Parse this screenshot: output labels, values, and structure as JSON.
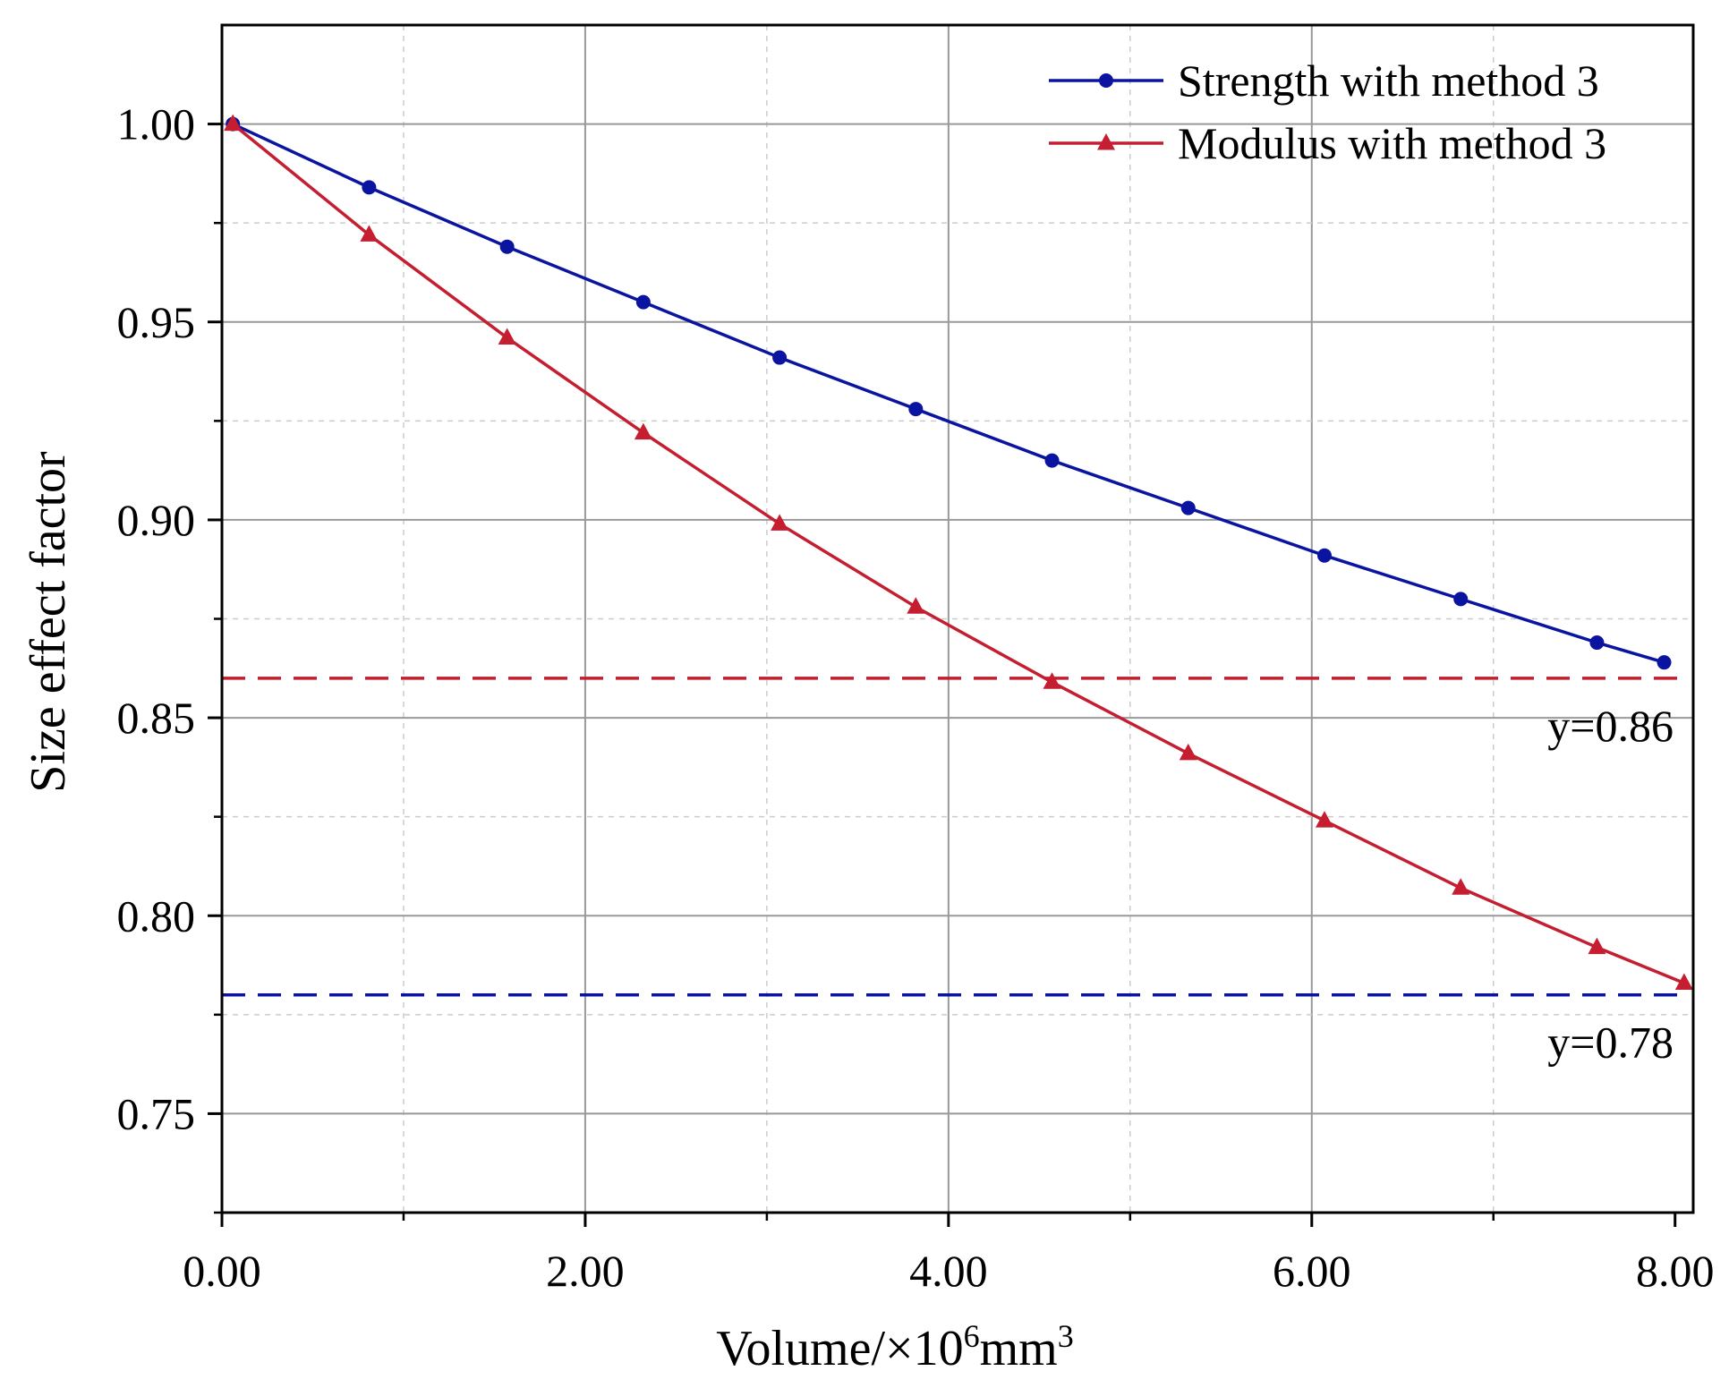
{
  "chart_data": {
    "type": "line",
    "xlabel": "Volume/×10",
    "xlabel_sup": "6",
    "xlabel_unit": "mm",
    "xlabel_unit_sup": "3",
    "ylabel": "Size effect factor",
    "xlim": [
      0,
      8.1
    ],
    "ylim": [
      0.725,
      1.025
    ],
    "x_ticks": [
      "0.00",
      "2.00",
      "4.00",
      "6.00",
      "8.00"
    ],
    "x_tick_values": [
      0,
      2,
      4,
      6,
      8
    ],
    "y_ticks": [
      "0.75",
      "0.80",
      "0.85",
      "0.90",
      "0.95",
      "1.00"
    ],
    "y_tick_values": [
      0.75,
      0.8,
      0.85,
      0.9,
      0.95,
      1.0
    ],
    "grid": true,
    "legend_position": "top-right",
    "series": [
      {
        "name": "Strength with method 3",
        "color": "#0a14a0",
        "marker": "circle",
        "x": [
          0.06,
          0.81,
          1.57,
          2.32,
          3.07,
          3.82,
          4.57,
          5.32,
          6.07,
          6.82,
          7.57,
          7.94
        ],
        "y": [
          1.0,
          0.984,
          0.969,
          0.955,
          0.941,
          0.928,
          0.915,
          0.903,
          0.891,
          0.88,
          0.869,
          0.864
        ]
      },
      {
        "name": "Modulus with method 3",
        "color": "#c41e30",
        "marker": "triangle",
        "x": [
          0.06,
          0.81,
          1.57,
          2.32,
          3.07,
          3.82,
          4.57,
          5.32,
          6.07,
          6.82,
          7.57,
          8.05
        ],
        "y": [
          1.0,
          0.972,
          0.946,
          0.922,
          0.899,
          0.878,
          0.859,
          0.841,
          0.824,
          0.807,
          0.792,
          0.783
        ]
      }
    ],
    "reference_lines": [
      {
        "y": 0.86,
        "label": "y=0.86",
        "color": "#c41e30"
      },
      {
        "y": 0.78,
        "label": "y=0.78",
        "color": "#0a14a0"
      }
    ]
  }
}
